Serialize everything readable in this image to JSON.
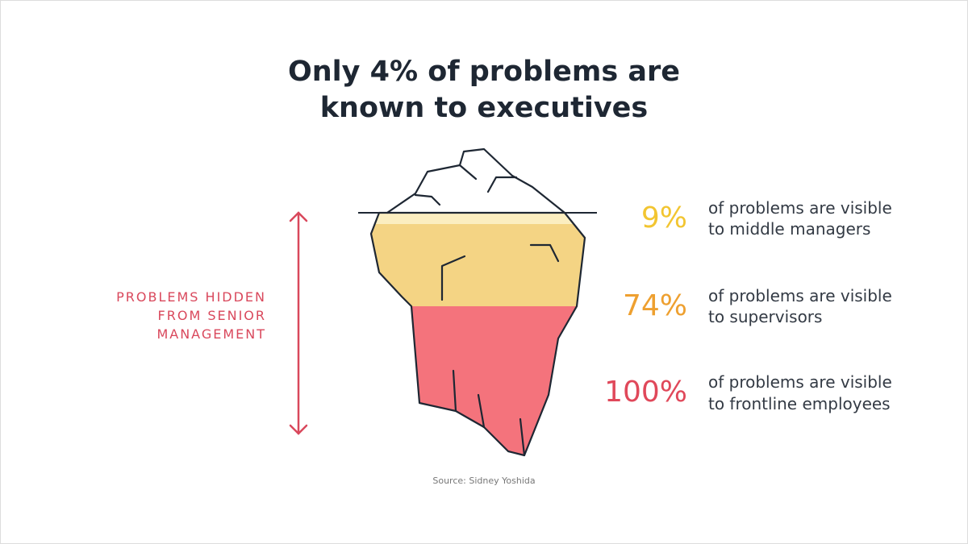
{
  "title": [
    "Only 4% of problems are",
    "known to executives"
  ],
  "side_label": [
    "PROBLEMS HIDDEN",
    "FROM SENIOR",
    "MANAGEMENT"
  ],
  "items": [
    {
      "percent": "9%",
      "description": [
        "of problems are visible",
        "to middle managers"
      ]
    },
    {
      "percent": "74%",
      "description": [
        "of problems are visible",
        "to supervisors"
      ]
    },
    {
      "percent": "100%",
      "description": [
        "of problems are visible",
        "to frontline employees"
      ]
    }
  ],
  "source": "Source: Sidney Yoshida"
}
